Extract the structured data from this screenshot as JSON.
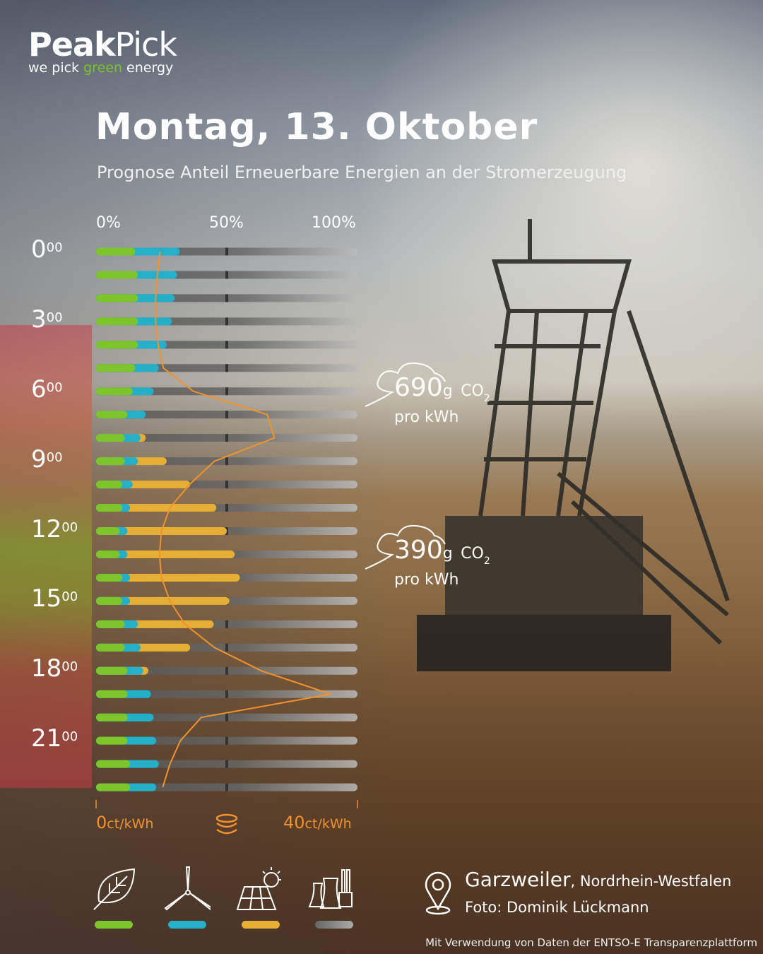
{
  "logo": {
    "brand_bold": "Peak",
    "brand_light": "Pick",
    "tagline_pre": "we pick ",
    "tagline_green": "green",
    "tagline_post": " energy"
  },
  "header": {
    "title": "Montag, 13. Oktober",
    "subtitle": "Prognose Anteil Erneuerbare Energien an der Stromerzeugung"
  },
  "chart_data": {
    "type": "bar",
    "orientation": "horizontal-stacked",
    "x_ticks": [
      "0%",
      "50%",
      "100%"
    ],
    "xlim": [
      0,
      100
    ],
    "hours": [
      "0",
      "",
      "",
      "3",
      "",
      "",
      "6",
      "",
      "",
      "9",
      "",
      "",
      "12",
      "",
      "",
      "15",
      "",
      "",
      "18",
      "",
      "",
      "21",
      "",
      ""
    ],
    "hour_superscript": "00",
    "series": [
      {
        "icon": "leaf-icon",
        "color": "#7dc52a",
        "values": [
          15,
          16,
          16,
          16,
          16,
          15,
          14,
          12,
          11,
          11,
          10,
          10,
          9,
          9,
          10,
          10,
          11,
          11,
          12,
          12,
          12,
          12,
          13,
          13
        ]
      },
      {
        "icon": "wind-turbine-icon",
        "color": "#24b0c8",
        "values": [
          17,
          15,
          14,
          13,
          11,
          9,
          8,
          7,
          6,
          5,
          4,
          3,
          3,
          3,
          3,
          3,
          5,
          6,
          6,
          9,
          10,
          11,
          11,
          10
        ]
      },
      {
        "icon": "solar-panel-icon",
        "color": "#e6ae35",
        "values": [
          0,
          0,
          0,
          0,
          0,
          0,
          0,
          0,
          2,
          11,
          22,
          33,
          38,
          41,
          42,
          38,
          29,
          19,
          2,
          0,
          0,
          0,
          0,
          0
        ]
      },
      {
        "icon": "power-plant-icon",
        "color": "#7a7a7a",
        "role": "remainder"
      }
    ],
    "price_line": {
      "color": "#f0922e",
      "unit": "ct/kWh",
      "range": [
        0,
        40
      ],
      "range_labels": [
        "0",
        "40"
      ],
      "icon": "coins-icon",
      "values": [
        9.8,
        9.4,
        9.1,
        9.1,
        9.5,
        10.3,
        14.9,
        26.2,
        27.3,
        18.1,
        14.3,
        11.3,
        10.0,
        9.7,
        10.0,
        11.3,
        13.6,
        18.1,
        25.3,
        35.9,
        16.1,
        12.9,
        11.3,
        10.2
      ]
    },
    "co2_band": {
      "colors": [
        "#c83c46",
        "#d25a3c",
        "#8caa28",
        "#c83c46"
      ]
    }
  },
  "co2": [
    {
      "value": "690",
      "unit": "g",
      "gas": "CO",
      "sub": "2",
      "per": "pro kWh"
    },
    {
      "value": "390",
      "unit": "g",
      "gas": "CO",
      "sub": "2",
      "per": "pro kWh"
    }
  ],
  "location": {
    "name": "Garzweiler",
    "region": ", Nordrhein-Westfalen",
    "photo": "Foto: Dominik Lückmann"
  },
  "source": "Mit Verwendung von Daten der ENTSO-E Transparenzplattform"
}
